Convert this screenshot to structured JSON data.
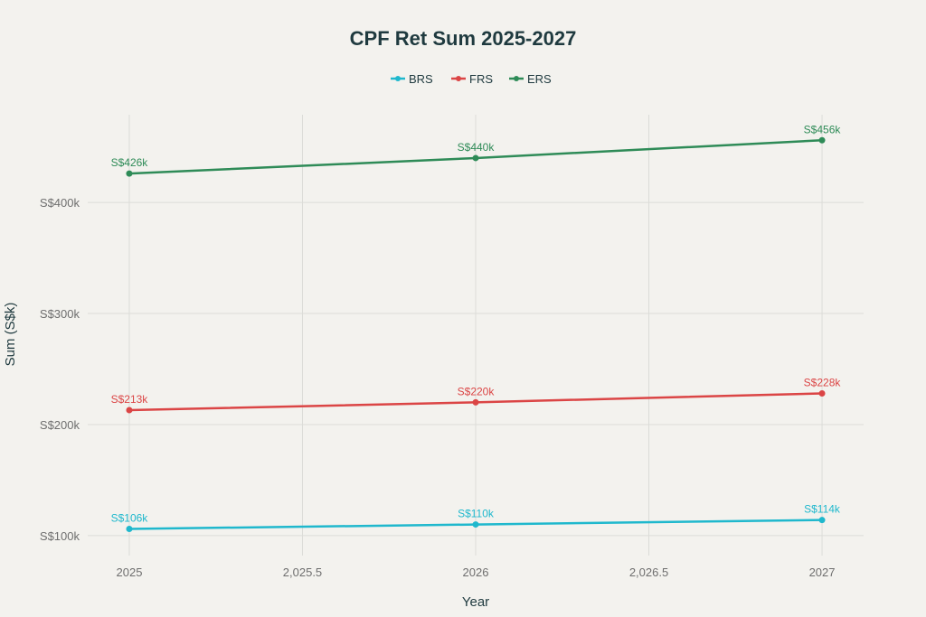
{
  "chart_data": {
    "type": "line",
    "title": "CPF Ret Sum 2025-2027",
    "xlabel": "Year",
    "ylabel": "Sum (S$k)",
    "x": [
      2025,
      2026,
      2027
    ],
    "xlim": [
      2024.88,
      2027.12
    ],
    "ylim": [
      82,
      479
    ],
    "x_ticks": [
      2025,
      2025.5,
      2026,
      2026.5,
      2027
    ],
    "x_tick_labels": [
      "2025",
      "2,025.5",
      "2026",
      "2,026.5",
      "2027"
    ],
    "y_ticks": [
      100,
      200,
      300,
      400
    ],
    "y_tick_labels": [
      "S$100k",
      "S$200k",
      "S$300k",
      "S$400k"
    ],
    "grid": true,
    "legend_position": "top-center",
    "series": [
      {
        "name": "BRS",
        "color": "#1FB8CD",
        "values": [
          106,
          110,
          114
        ],
        "labels": [
          "S$106k",
          "S$110k",
          "S$114k"
        ]
      },
      {
        "name": "FRS",
        "color": "#DB4545",
        "values": [
          213,
          220,
          228
        ],
        "labels": [
          "S$213k",
          "S$220k",
          "S$228k"
        ]
      },
      {
        "name": "ERS",
        "color": "#2E8B57",
        "values": [
          426,
          440,
          456
        ],
        "labels": [
          "S$426k",
          "S$440k",
          "S$456k"
        ]
      }
    ]
  }
}
